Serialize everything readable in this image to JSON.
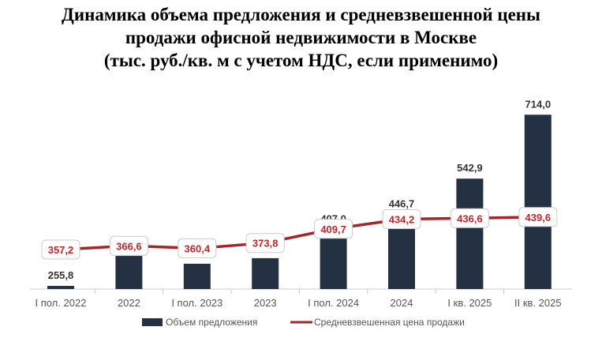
{
  "chart_data": {
    "type": "bar+line",
    "title_lines": [
      "Динамика объема предложения и средневзвешенной цены",
      "продажи офисной недвижимости в Москве",
      "(тыс. руб./кв. м с учетом НДС, если применимо)"
    ],
    "categories": [
      "I пол. 2022",
      "2022",
      "I пол. 2023",
      "2023",
      "I пол. 2024",
      "2024",
      "I кв. 2025",
      "II кв. 2025"
    ],
    "series": [
      {
        "name": "Объем предложения",
        "type": "bar",
        "color": "#243142",
        "values": [
          255.8,
          336,
          315,
          330,
          407.0,
          446.7,
          542.9,
          714.0
        ],
        "labels": [
          "255,8",
          null,
          null,
          null,
          "407,0",
          "446,7",
          "542,9",
          "714,0"
        ]
      },
      {
        "name": "Средневзвешенная цена продажи",
        "type": "line",
        "color": "#a3262c",
        "values": [
          357.2,
          366.6,
          360.4,
          373.8,
          409.7,
          434.2,
          436.6,
          439.6
        ],
        "labels": [
          "357,2",
          "366,6",
          "360,4",
          "373,8",
          "409,7",
          "434,2",
          "436,6",
          "439,6"
        ]
      }
    ],
    "legend_position": "bottom",
    "grid": false
  }
}
